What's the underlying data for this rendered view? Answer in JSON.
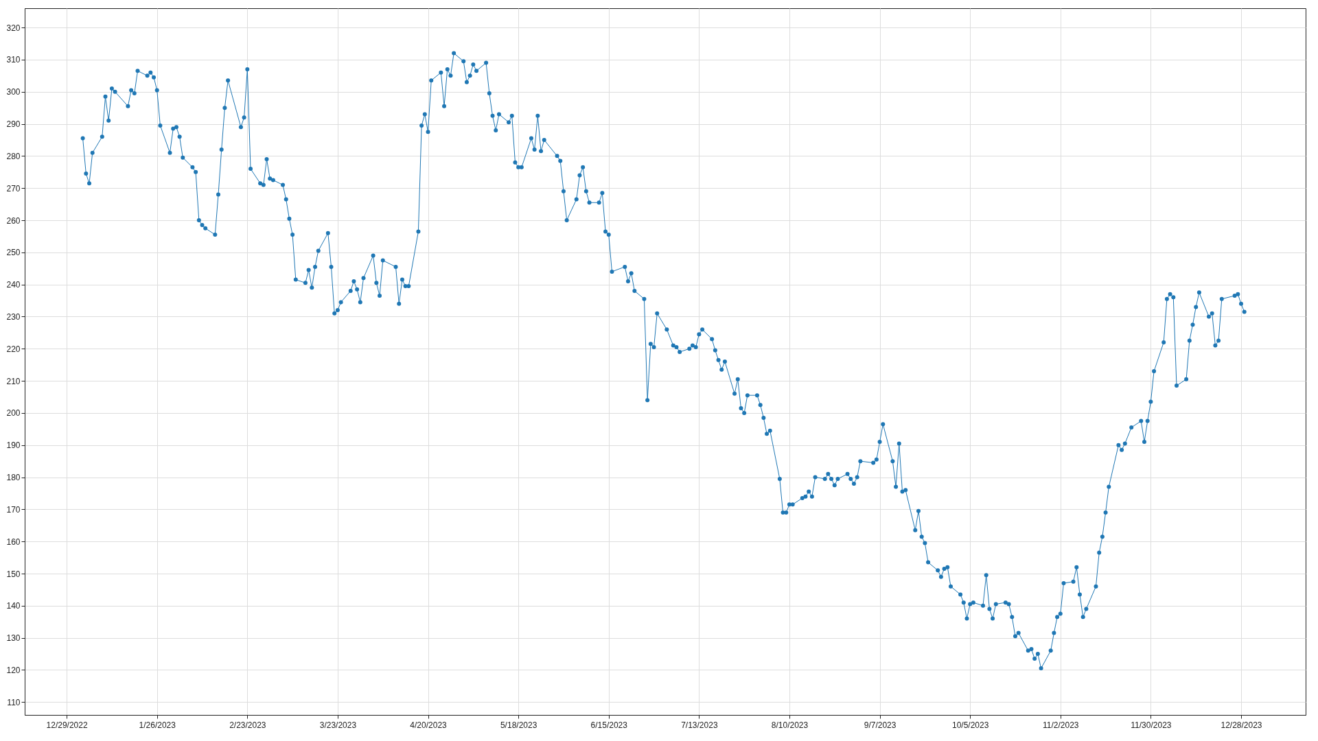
{
  "chart_data": {
    "type": "line",
    "x": [
      "2023-01-03",
      "2023-01-04",
      "2023-01-05",
      "2023-01-06",
      "2023-01-09",
      "2023-01-10",
      "2023-01-11",
      "2023-01-12",
      "2023-01-13",
      "2023-01-17",
      "2023-01-18",
      "2023-01-19",
      "2023-01-20",
      "2023-01-23",
      "2023-01-24",
      "2023-01-25",
      "2023-01-26",
      "2023-01-27",
      "2023-01-30",
      "2023-01-31",
      "2023-02-01",
      "2023-02-02",
      "2023-02-03",
      "2023-02-06",
      "2023-02-07",
      "2023-02-08",
      "2023-02-09",
      "2023-02-10",
      "2023-02-13",
      "2023-02-14",
      "2023-02-15",
      "2023-02-16",
      "2023-02-17",
      "2023-02-21",
      "2023-02-22",
      "2023-02-23",
      "2023-02-24",
      "2023-02-27",
      "2023-02-28",
      "2023-03-01",
      "2023-03-02",
      "2023-03-03",
      "2023-03-06",
      "2023-03-07",
      "2023-03-08",
      "2023-03-09",
      "2023-03-10",
      "2023-03-13",
      "2023-03-14",
      "2023-03-15",
      "2023-03-16",
      "2023-03-17",
      "2023-03-20",
      "2023-03-21",
      "2023-03-22",
      "2023-03-23",
      "2023-03-24",
      "2023-03-27",
      "2023-03-28",
      "2023-03-29",
      "2023-03-30",
      "2023-03-31",
      "2023-04-03",
      "2023-04-04",
      "2023-04-05",
      "2023-04-06",
      "2023-04-10",
      "2023-04-11",
      "2023-04-12",
      "2023-04-13",
      "2023-04-14",
      "2023-04-17",
      "2023-04-18",
      "2023-04-19",
      "2023-04-20",
      "2023-04-21",
      "2023-04-24",
      "2023-04-25",
      "2023-04-26",
      "2023-04-27",
      "2023-04-28",
      "2023-05-01",
      "2023-05-02",
      "2023-05-03",
      "2023-05-04",
      "2023-05-05",
      "2023-05-08",
      "2023-05-09",
      "2023-05-10",
      "2023-05-11",
      "2023-05-12",
      "2023-05-15",
      "2023-05-16",
      "2023-05-17",
      "2023-05-18",
      "2023-05-19",
      "2023-05-22",
      "2023-05-23",
      "2023-05-24",
      "2023-05-25",
      "2023-05-26",
      "2023-05-30",
      "2023-05-31",
      "2023-06-01",
      "2023-06-02",
      "2023-06-05",
      "2023-06-06",
      "2023-06-07",
      "2023-06-08",
      "2023-06-09",
      "2023-06-12",
      "2023-06-13",
      "2023-06-14",
      "2023-06-15",
      "2023-06-16",
      "2023-06-20",
      "2023-06-21",
      "2023-06-22",
      "2023-06-23",
      "2023-06-26",
      "2023-06-27",
      "2023-06-28",
      "2023-06-29",
      "2023-06-30",
      "2023-07-03",
      "2023-07-05",
      "2023-07-06",
      "2023-07-07",
      "2023-07-10",
      "2023-07-11",
      "2023-07-12",
      "2023-07-13",
      "2023-07-14",
      "2023-07-17",
      "2023-07-18",
      "2023-07-19",
      "2023-07-20",
      "2023-07-21",
      "2023-07-24",
      "2023-07-25",
      "2023-07-26",
      "2023-07-27",
      "2023-07-28",
      "2023-07-31",
      "2023-08-01",
      "2023-08-02",
      "2023-08-03",
      "2023-08-04",
      "2023-08-07",
      "2023-08-08",
      "2023-08-09",
      "2023-08-10",
      "2023-08-11",
      "2023-08-14",
      "2023-08-15",
      "2023-08-16",
      "2023-08-17",
      "2023-08-18",
      "2023-08-21",
      "2023-08-22",
      "2023-08-23",
      "2023-08-24",
      "2023-08-25",
      "2023-08-28",
      "2023-08-29",
      "2023-08-30",
      "2023-08-31",
      "2023-09-01",
      "2023-09-05",
      "2023-09-06",
      "2023-09-07",
      "2023-09-08",
      "2023-09-11",
      "2023-09-12",
      "2023-09-13",
      "2023-09-14",
      "2023-09-15",
      "2023-09-18",
      "2023-09-19",
      "2023-09-20",
      "2023-09-21",
      "2023-09-22",
      "2023-09-25",
      "2023-09-26",
      "2023-09-27",
      "2023-09-28",
      "2023-09-29",
      "2023-10-02",
      "2023-10-03",
      "2023-10-04",
      "2023-10-05",
      "2023-10-06",
      "2023-10-09",
      "2023-10-10",
      "2023-10-11",
      "2023-10-12",
      "2023-10-13",
      "2023-10-16",
      "2023-10-17",
      "2023-10-18",
      "2023-10-19",
      "2023-10-20",
      "2023-10-23",
      "2023-10-24",
      "2023-10-25",
      "2023-10-26",
      "2023-10-27",
      "2023-10-30",
      "2023-10-31",
      "2023-11-01",
      "2023-11-02",
      "2023-11-03",
      "2023-11-06",
      "2023-11-07",
      "2023-11-08",
      "2023-11-09",
      "2023-11-10",
      "2023-11-13",
      "2023-11-14",
      "2023-11-15",
      "2023-11-16",
      "2023-11-17",
      "2023-11-20",
      "2023-11-21",
      "2023-11-22",
      "2023-11-24",
      "2023-11-27",
      "2023-11-28",
      "2023-11-29",
      "2023-11-30",
      "2023-12-01",
      "2023-12-04",
      "2023-12-05",
      "2023-12-06",
      "2023-12-07",
      "2023-12-08",
      "2023-12-11",
      "2023-12-12",
      "2023-12-13",
      "2023-12-14",
      "2023-12-15",
      "2023-12-18",
      "2023-12-19",
      "2023-12-20",
      "2023-12-21",
      "2023-12-22",
      "2023-12-26",
      "2023-12-27",
      "2023-12-28",
      "2023-12-29"
    ],
    "series": [
      {
        "color": "#1f77b4",
        "values": [
          285.5,
          274.5,
          271.5,
          281,
          286,
          298.5,
          291,
          301,
          300,
          295.5,
          300.5,
          299.5,
          306.5,
          305,
          306,
          304.5,
          300.5,
          289.5,
          281,
          288.5,
          289,
          286,
          279.5,
          276.5,
          275,
          260,
          258.5,
          257.5,
          255.5,
          268,
          282,
          295,
          303.5,
          289,
          292,
          307,
          276,
          271.5,
          271,
          279,
          273,
          272.5,
          271,
          266.5,
          260.5,
          255.5,
          241.5,
          240.5,
          244.5,
          239,
          245.5,
          250.5,
          256,
          245.5,
          231,
          232,
          234.5,
          238,
          241,
          238.5,
          234.5,
          242,
          249,
          240.5,
          236.5,
          247.5,
          245.5,
          234,
          241.5,
          239.5,
          239.5,
          256.5,
          289.5,
          293,
          287.5,
          303.5,
          306,
          295.5,
          307,
          305,
          312,
          309.5,
          303,
          305,
          308.5,
          306.5,
          309,
          299.5,
          292.5,
          288,
          293,
          290.5,
          292.5,
          278,
          276.5,
          276.5,
          285.5,
          282,
          292.5,
          281.5,
          285,
          280,
          278.5,
          269,
          260,
          266.5,
          274,
          276.5,
          269,
          265.5,
          265.5,
          268.5,
          256.5,
          255.5,
          244,
          245.5,
          241,
          243.5,
          238,
          235.5,
          204,
          221.5,
          220.5,
          231,
          226,
          221,
          220.5,
          219,
          220,
          221,
          220.5,
          224.5,
          226,
          223,
          219.5,
          216.5,
          213.5,
          216,
          206,
          210.5,
          201.5,
          200,
          205.5,
          205.5,
          202.5,
          198.5,
          193.5,
          194.5,
          179.5,
          169,
          169,
          171.5,
          171.5,
          173.5,
          174,
          175.5,
          174,
          180,
          179.5,
          181,
          179.5,
          177.5,
          179.5,
          181,
          179.5,
          178,
          180,
          185,
          184.5,
          185.5,
          191,
          196.5,
          185,
          177,
          190.5,
          175.5,
          176,
          163.5,
          169.5,
          161.5,
          159.5,
          153.5,
          151,
          149,
          151.5,
          152,
          146,
          143.5,
          141,
          136,
          140.5,
          141,
          140,
          149.5,
          139,
          136,
          140.5,
          141,
          140.5,
          136.5,
          130.5,
          131.5,
          126,
          126.5,
          123.5,
          125,
          120.5,
          126,
          131.5,
          136.5,
          137.5,
          147,
          147.5,
          152,
          143.5,
          136.5,
          139,
          146,
          156.5,
          161.5,
          169,
          177,
          190,
          188.5,
          190.5,
          195.5,
          197.5,
          191,
          197.5,
          203.5,
          213,
          222,
          235.5,
          237,
          236,
          208.5,
          210.5,
          222.5,
          227.5,
          233,
          237.5,
          230,
          231,
          221,
          222.5,
          235.5,
          236.5,
          237,
          234,
          231.5
        ]
      }
    ],
    "xlim": [
      "2022-12-16",
      "2024-01-17"
    ],
    "xticks": [
      {
        "value": "2022-12-29",
        "label": "12/29/2022"
      },
      {
        "value": "2023-01-26",
        "label": "1/26/2023"
      },
      {
        "value": "2023-02-23",
        "label": "2/23/2023"
      },
      {
        "value": "2023-03-23",
        "label": "3/23/2023"
      },
      {
        "value": "2023-04-20",
        "label": "4/20/2023"
      },
      {
        "value": "2023-05-18",
        "label": "5/18/2023"
      },
      {
        "value": "2023-06-15",
        "label": "6/15/2023"
      },
      {
        "value": "2023-07-13",
        "label": "7/13/2023"
      },
      {
        "value": "2023-08-10",
        "label": "8/10/2023"
      },
      {
        "value": "2023-09-07",
        "label": "9/7/2023"
      },
      {
        "value": "2023-10-05",
        "label": "10/5/2023"
      },
      {
        "value": "2023-11-02",
        "label": "11/2/2023"
      },
      {
        "value": "2023-11-30",
        "label": "11/30/2023"
      },
      {
        "value": "2023-12-28",
        "label": "12/28/2023"
      }
    ],
    "ylim": [
      106,
      326
    ],
    "yticks": [
      110,
      120,
      130,
      140,
      150,
      160,
      170,
      180,
      190,
      200,
      210,
      220,
      230,
      240,
      250,
      260,
      270,
      280,
      290,
      300,
      310,
      320
    ],
    "grid": true,
    "marker": "circle",
    "line_style": "solid"
  }
}
